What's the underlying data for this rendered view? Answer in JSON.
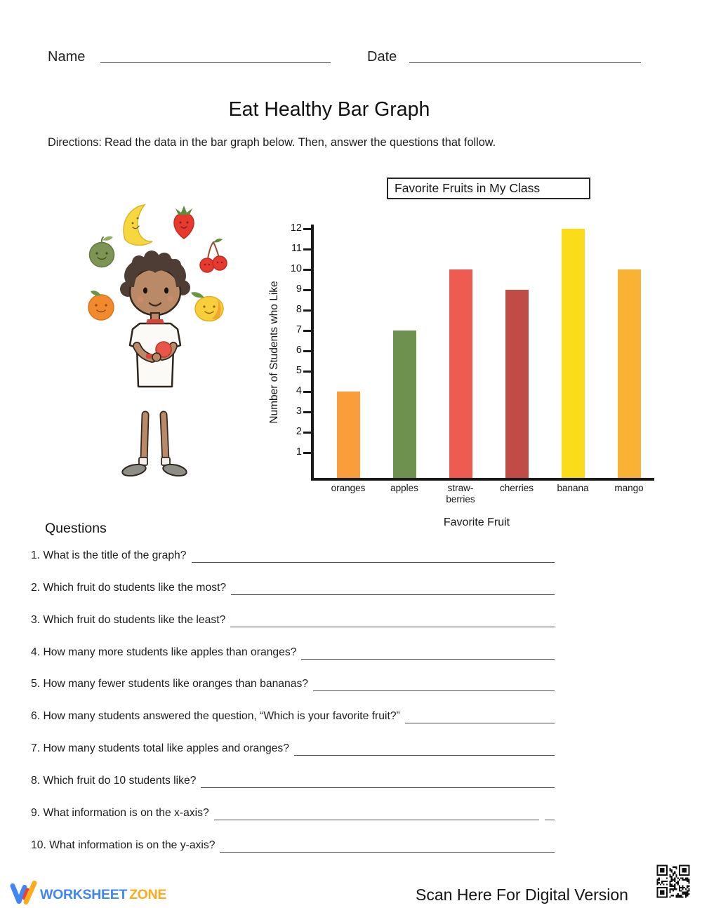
{
  "header": {
    "name_label": "Name",
    "date_label": "Date"
  },
  "title": "Eat Healthy Bar Graph",
  "directions": {
    "label": "Directions:",
    "text": "Read the data in the bar graph below. Then, answer the questions that follow."
  },
  "chart_data": {
    "type": "bar",
    "title": "Favorite Fruits in My Class",
    "categories": [
      "oranges",
      "apples",
      "straw-berries",
      "cherries",
      "banana",
      "mango"
    ],
    "values": [
      4,
      7,
      10,
      9,
      12,
      10
    ],
    "colors": [
      "#F99E3A",
      "#6F9150",
      "#EE5B50",
      "#C04B47",
      "#FBDC1B",
      "#F9B233"
    ],
    "xlabel": "Favorite Fruit",
    "ylabel": "Number of Students who Like",
    "ylim": [
      0,
      12
    ],
    "ytick_step": 1,
    "grid": false,
    "legend": "none"
  },
  "questions": {
    "heading": "Questions",
    "items": [
      {
        "text": "1. What is the title of the graph?"
      },
      {
        "text": "2. Which fruit do students like the most?"
      },
      {
        "text": "3. Which fruit do students like the least?"
      },
      {
        "text": "4. How many more students like apples than oranges?"
      },
      {
        "text": "5. How many fewer students like oranges than bananas?"
      },
      {
        "text": "6. How many students answered the question, “Which is your favorite fruit?”"
      },
      {
        "text": "7. How many students total like apples and oranges?"
      },
      {
        "text": "8. Which fruit do 10 students like?"
      },
      {
        "text": "9. What information is on the x-axis?",
        "extra_blank": true
      },
      {
        "text": "10. What information is on the y-axis?"
      }
    ]
  },
  "footer": {
    "brand_word1": "WORKSHEET",
    "brand_word2": "ZONE",
    "brand_blue": "#4186F5",
    "brand_orange": "#FBAB1C",
    "scan_text": "Scan Here For Digital Version"
  }
}
